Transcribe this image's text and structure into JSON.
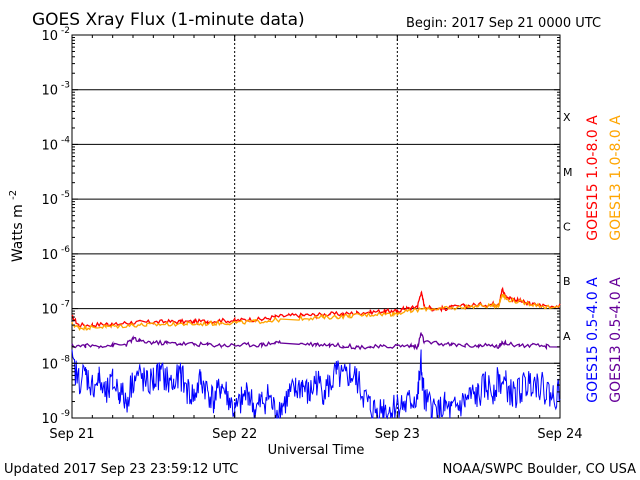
{
  "chart_data": {
    "type": "line",
    "title": "GOES Xray Flux (1-minute data)",
    "begin_label": "Begin:  2017 Sep 21 0000 UTC",
    "xlabel": "Universal Time",
    "ylabel": "Watts m",
    "ylabel_sup": "-2",
    "yscale": "log",
    "ylim": [
      1e-09,
      0.01
    ],
    "xlim": [
      0,
      72
    ],
    "x_unit": "hours since 2017 Sep 21 0000 UTC",
    "x_ticks": [
      {
        "x": 0,
        "label": "Sep 21"
      },
      {
        "x": 24,
        "label": "Sep 22"
      },
      {
        "x": 48,
        "label": "Sep 23"
      },
      {
        "x": 72,
        "label": "Sep 24"
      }
    ],
    "y_ticks": [
      {
        "exp": -9,
        "label": "10",
        "sup": "-9"
      },
      {
        "exp": -8,
        "label": "10",
        "sup": "-8"
      },
      {
        "exp": -7,
        "label": "10",
        "sup": "-7"
      },
      {
        "exp": -6,
        "label": "10",
        "sup": "-6"
      },
      {
        "exp": -5,
        "label": "10",
        "sup": "-5"
      },
      {
        "exp": -4,
        "label": "10",
        "sup": "-4"
      },
      {
        "exp": -3,
        "label": "10",
        "sup": "-3"
      },
      {
        "exp": -2,
        "label": "10",
        "sup": "-2"
      }
    ],
    "flare_classes": [
      {
        "label": "A",
        "exp": -7.5
      },
      {
        "label": "B",
        "exp": -6.5
      },
      {
        "label": "C",
        "exp": -5.5
      },
      {
        "label": "M",
        "exp": -4.5
      },
      {
        "label": "X",
        "exp": -3.5
      }
    ],
    "horizontal_grid_exps": [
      -8,
      -7,
      -6,
      -5,
      -4,
      -3
    ],
    "series": [
      {
        "name": "GOES15 1.0-8.0 A",
        "color": "#ff0000",
        "points": [
          [
            0,
            -7.15
          ],
          [
            1,
            -7.3
          ],
          [
            3,
            -7.3
          ],
          [
            5,
            -7.28
          ],
          [
            6,
            -7.3
          ],
          [
            8,
            -7.26
          ],
          [
            10,
            -7.25
          ],
          [
            12,
            -7.25
          ],
          [
            14,
            -7.24
          ],
          [
            16,
            -7.24
          ],
          [
            18,
            -7.24
          ],
          [
            20,
            -7.23
          ],
          [
            22,
            -7.22
          ],
          [
            24,
            -7.22
          ],
          [
            26,
            -7.2
          ],
          [
            28,
            -7.2
          ],
          [
            30,
            -7.15
          ],
          [
            32,
            -7.13
          ],
          [
            34,
            -7.12
          ],
          [
            36,
            -7.12
          ],
          [
            38,
            -7.1
          ],
          [
            40,
            -7.1
          ],
          [
            42,
            -7.08
          ],
          [
            44,
            -7.06
          ],
          [
            46,
            -7.05
          ],
          [
            47,
            -7.05
          ],
          [
            48,
            -7.05
          ],
          [
            49,
            -7.0
          ],
          [
            50,
            -7.0
          ],
          [
            51,
            -6.95
          ],
          [
            51.5,
            -6.7
          ],
          [
            52,
            -6.95
          ],
          [
            53,
            -7.0
          ],
          [
            54,
            -7.0
          ],
          [
            55,
            -7.0
          ],
          [
            56,
            -6.98
          ],
          [
            58,
            -6.95
          ],
          [
            60,
            -6.93
          ],
          [
            62,
            -6.92
          ],
          [
            63,
            -6.9
          ],
          [
            63.5,
            -6.65
          ],
          [
            64,
            -6.78
          ],
          [
            65,
            -6.82
          ],
          [
            66,
            -6.86
          ],
          [
            67,
            -6.9
          ],
          [
            68,
            -6.92
          ],
          [
            70,
            -6.95
          ],
          [
            72,
            -6.95
          ]
        ]
      },
      {
        "name": "GOES13 1.0-8.0 A",
        "color": "#ffa500",
        "points": [
          [
            0,
            -7.28
          ],
          [
            1,
            -7.35
          ],
          [
            2,
            -7.35
          ],
          [
            3,
            -7.34
          ],
          [
            5,
            -7.33
          ],
          [
            7,
            -7.32
          ],
          [
            9,
            -7.3
          ],
          [
            11,
            -7.3
          ],
          [
            13,
            -7.29
          ],
          [
            15,
            -7.28
          ],
          [
            17,
            -7.28
          ],
          [
            19,
            -7.28
          ],
          [
            21,
            -7.27
          ],
          [
            23,
            -7.26
          ],
          [
            25,
            -7.25
          ],
          [
            27,
            -7.24
          ],
          [
            29,
            -7.22
          ],
          [
            31,
            -7.2
          ],
          [
            33,
            -7.18
          ],
          [
            35,
            -7.17
          ],
          [
            37,
            -7.16
          ],
          [
            39,
            -7.15
          ],
          [
            41,
            -7.13
          ],
          [
            43,
            -7.12
          ],
          [
            45,
            -7.1
          ],
          [
            47,
            -7.1
          ],
          [
            48,
            -7.08
          ],
          [
            50,
            -7.05
          ],
          [
            52,
            -7.0
          ],
          [
            54,
            -7.0
          ],
          [
            56,
            -7.0
          ],
          [
            58,
            -6.97
          ],
          [
            60,
            -6.95
          ],
          [
            62,
            -6.95
          ],
          [
            63,
            -6.93
          ],
          [
            63.5,
            -6.72
          ],
          [
            64,
            -6.82
          ],
          [
            66,
            -6.88
          ],
          [
            68,
            -6.92
          ],
          [
            70,
            -6.97
          ],
          [
            72,
            -6.97
          ]
        ]
      },
      {
        "name": "GOES15 0.5-4.0 A",
        "color": "#0000ff",
        "points": [
          [
            0,
            -8.0
          ],
          [
            1,
            -8.3
          ],
          [
            2,
            -8.2
          ],
          [
            3,
            -8.4
          ],
          [
            4,
            -8.3
          ],
          [
            5,
            -8.6
          ],
          [
            6,
            -8.35
          ],
          [
            7,
            -8.5
          ],
          [
            8,
            -8.7
          ],
          [
            9,
            -8.3
          ],
          [
            10,
            -8.2
          ],
          [
            11,
            -8.4
          ],
          [
            12,
            -8.3
          ],
          [
            13,
            -8.2
          ],
          [
            14,
            -8.3
          ],
          [
            15,
            -8.4
          ],
          [
            16,
            -8.2
          ],
          [
            17,
            -8.5
          ],
          [
            18,
            -8.6
          ],
          [
            19,
            -8.3
          ],
          [
            20,
            -8.5
          ],
          [
            21,
            -8.7
          ],
          [
            22,
            -8.4
          ],
          [
            23,
            -8.6
          ],
          [
            24,
            -8.9
          ],
          [
            25,
            -8.7
          ],
          [
            26,
            -8.5
          ],
          [
            27,
            -8.9
          ],
          [
            28,
            -8.7
          ],
          [
            29,
            -8.6
          ],
          [
            30,
            -8.9
          ],
          [
            31,
            -8.8
          ],
          [
            32,
            -8.6
          ],
          [
            33,
            -8.5
          ],
          [
            34,
            -8.4
          ],
          [
            35,
            -8.6
          ],
          [
            36,
            -8.3
          ],
          [
            37,
            -8.5
          ],
          [
            38,
            -8.4
          ],
          [
            39,
            -8.2
          ],
          [
            40,
            -8.3
          ],
          [
            41,
            -8.2
          ],
          [
            42,
            -8.3
          ],
          [
            43,
            -8.6
          ],
          [
            44,
            -8.8
          ],
          [
            45,
            -8.9
          ],
          [
            46,
            -8.8
          ],
          [
            47,
            -8.9
          ],
          [
            48,
            -8.7
          ],
          [
            49,
            -8.8
          ],
          [
            50,
            -8.7
          ],
          [
            51,
            -8.6
          ],
          [
            51.5,
            -8.0
          ],
          [
            52,
            -8.7
          ],
          [
            53,
            -8.8
          ],
          [
            54,
            -8.9
          ],
          [
            55,
            -8.8
          ],
          [
            56,
            -8.9
          ],
          [
            57,
            -8.8
          ],
          [
            58,
            -8.7
          ],
          [
            59,
            -8.6
          ],
          [
            60,
            -8.6
          ],
          [
            61,
            -8.4
          ],
          [
            62,
            -8.5
          ],
          [
            63,
            -8.3
          ],
          [
            64,
            -8.4
          ],
          [
            65,
            -8.6
          ],
          [
            66,
            -8.5
          ],
          [
            67,
            -8.4
          ],
          [
            68,
            -8.3
          ],
          [
            69,
            -8.4
          ],
          [
            70,
            -8.5
          ],
          [
            71,
            -8.6
          ],
          [
            72,
            -8.5
          ]
        ]
      },
      {
        "name": "GOES13 0.5-4.0 A",
        "color": "#660099",
        "points": [
          [
            0,
            -7.68
          ],
          [
            2,
            -7.68
          ],
          [
            4,
            -7.68
          ],
          [
            6,
            -7.67
          ],
          [
            8,
            -7.66
          ],
          [
            9,
            -7.55
          ],
          [
            10,
            -7.6
          ],
          [
            12,
            -7.62
          ],
          [
            14,
            -7.63
          ],
          [
            16,
            -7.64
          ],
          [
            18,
            -7.65
          ],
          [
            20,
            -7.66
          ],
          [
            22,
            -7.67
          ],
          [
            24,
            -7.67
          ],
          [
            26,
            -7.66
          ],
          [
            28,
            -7.66
          ],
          [
            30,
            -7.62
          ],
          [
            31,
            -7.6
          ],
          [
            32,
            -7.62
          ],
          [
            34,
            -7.64
          ],
          [
            36,
            -7.65
          ],
          [
            38,
            -7.66
          ],
          [
            40,
            -7.68
          ],
          [
            42,
            -7.7
          ],
          [
            44,
            -7.7
          ],
          [
            46,
            -7.7
          ],
          [
            48,
            -7.68
          ],
          [
            50,
            -7.68
          ],
          [
            51,
            -7.7
          ],
          [
            51.5,
            -7.45
          ],
          [
            52,
            -7.62
          ],
          [
            54,
            -7.64
          ],
          [
            56,
            -7.66
          ],
          [
            58,
            -7.67
          ],
          [
            60,
            -7.68
          ],
          [
            62,
            -7.68
          ],
          [
            63,
            -7.7
          ],
          [
            63.5,
            -7.6
          ],
          [
            64,
            -7.64
          ],
          [
            66,
            -7.67
          ],
          [
            68,
            -7.68
          ],
          [
            70,
            -7.69
          ],
          [
            72,
            -7.7
          ]
        ]
      }
    ],
    "gap_spans_hours": [
      [
        30.8,
        33.5
      ],
      [
        70.5,
        72
      ]
    ]
  },
  "footer": {
    "updated": "Updated 2017 Sep 23 23:59:12 UTC",
    "source": "NOAA/SWPC Boulder, CO USA"
  }
}
